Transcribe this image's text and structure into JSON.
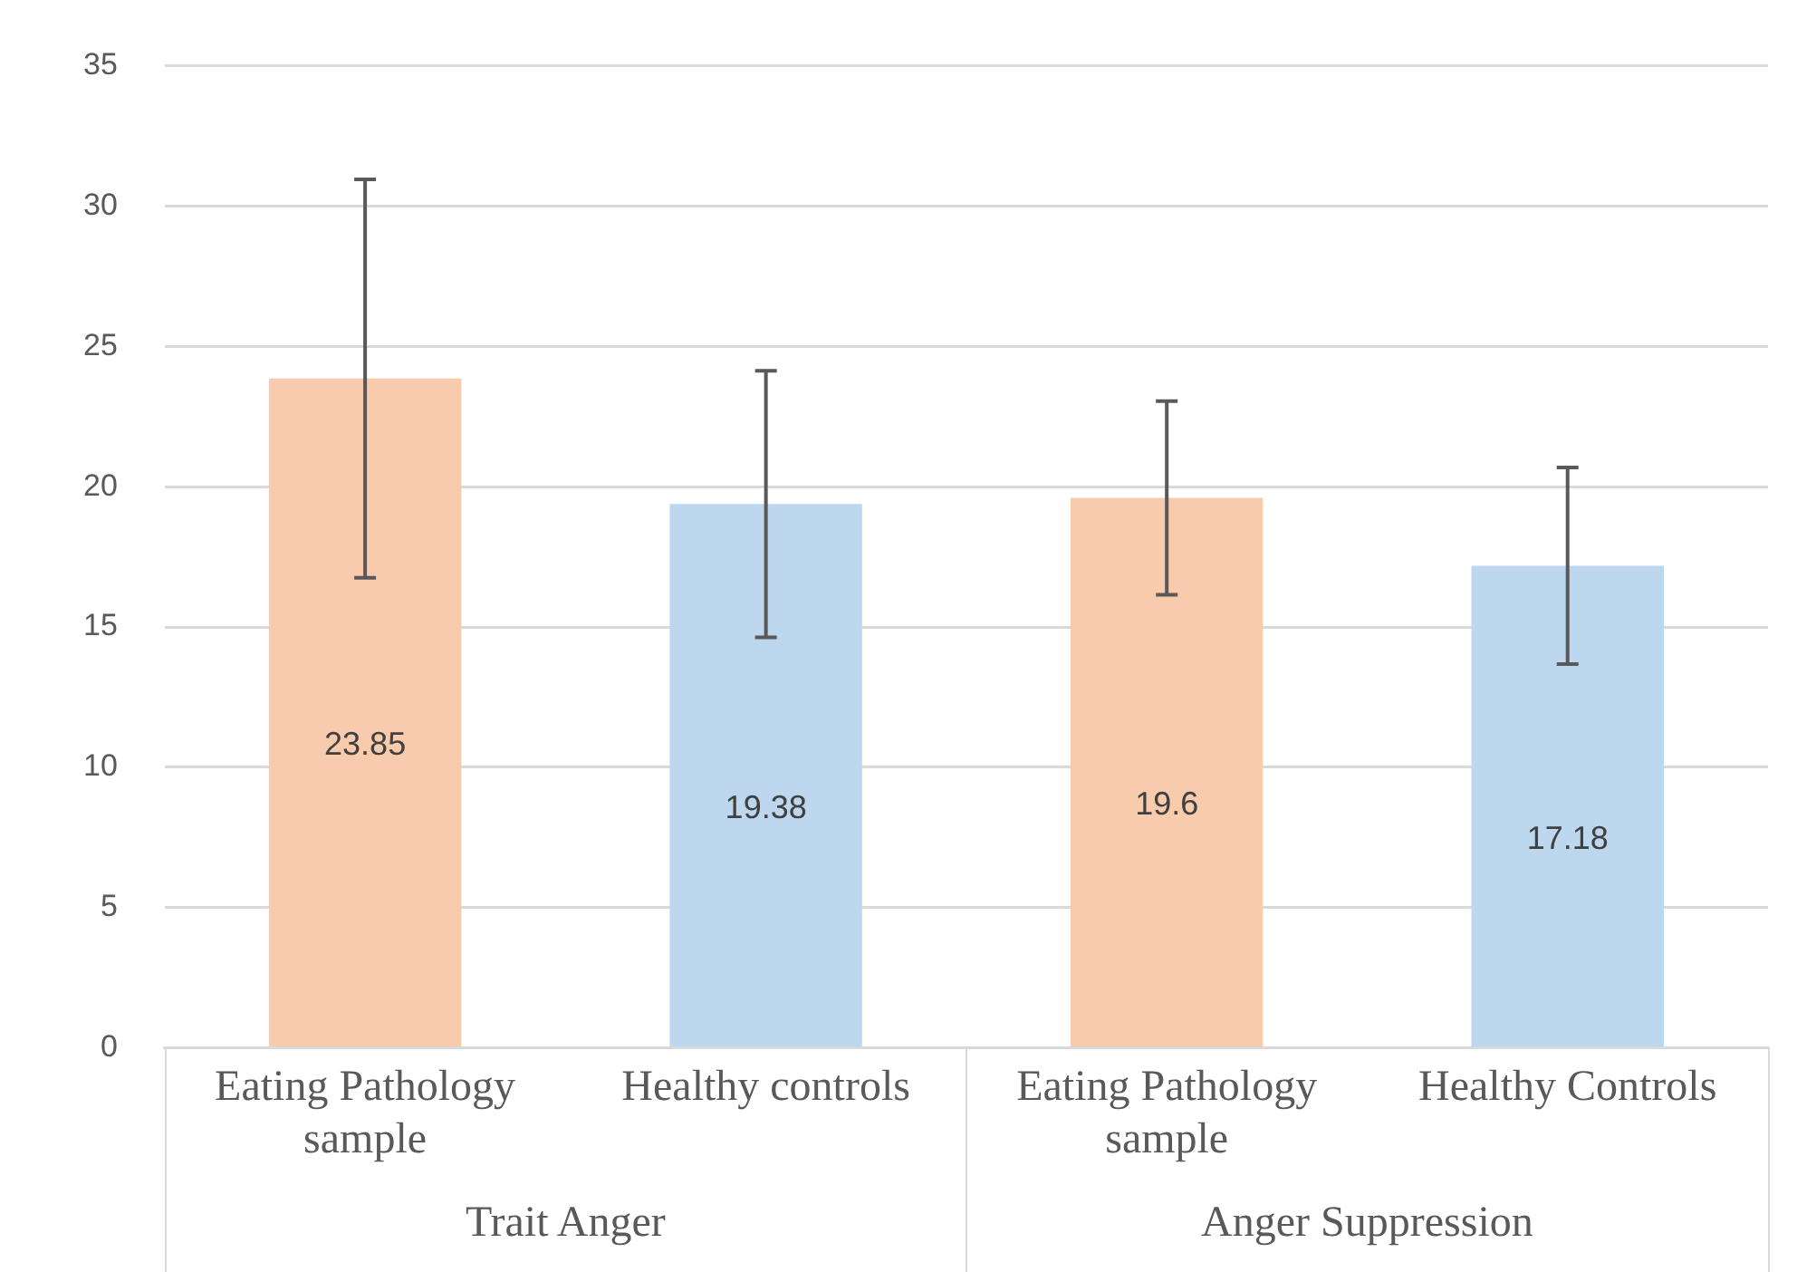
{
  "chart_data": {
    "type": "bar",
    "categories": [
      "Eating Pathology sample",
      "Healthy controls",
      "Eating Pathology sample",
      "Healthy Controls"
    ],
    "values": [
      23.85,
      19.38,
      19.6,
      17.18
    ],
    "colors": [
      "#f8cbad",
      "#bdd7ee",
      "#f8cbad",
      "#bdd7ee"
    ],
    "errors": [
      7.1,
      4.75,
      3.45,
      3.5
    ],
    "ylim": [
      0,
      35
    ],
    "yticks": [
      0,
      5,
      10,
      15,
      20,
      25,
      30,
      35
    ],
    "grid": "y",
    "legend": false,
    "data_labels": true,
    "annotations": [
      "Trait Anger",
      "Anger Suppression"
    ]
  }
}
